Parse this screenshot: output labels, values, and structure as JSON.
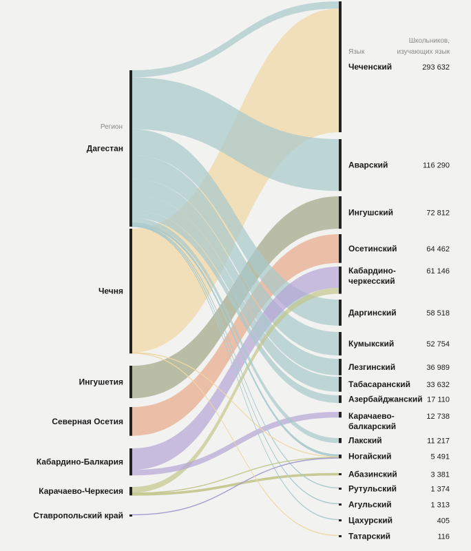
{
  "chart_data": {
    "type": "sankey",
    "headers": {
      "region": "Регион",
      "language": "Язык",
      "students_line1": "Школьников,",
      "students_line2": "изучающих язык"
    },
    "regions": [
      {
        "id": "dag",
        "label": "Дагестан",
        "color": "#a9c9cc"
      },
      {
        "id": "che",
        "label": "Чечня",
        "color": "#eed7a3"
      },
      {
        "id": "ing",
        "label": "Ингушетия",
        "color": "#a3a889"
      },
      {
        "id": "oss",
        "label": "Северная Осетия",
        "color": "#e6a98a"
      },
      {
        "id": "kbr",
        "label": "Кабардино-Балкария",
        "color": "#b5a6d6"
      },
      {
        "id": "kch",
        "label": "Карачаево-Черкесия",
        "color": "#c3c68c"
      },
      {
        "id": "sta",
        "label": "Ставропольский край",
        "color": "#a09ad0"
      }
    ],
    "languages": [
      {
        "id": "chechen",
        "label": [
          "Чеченский"
        ],
        "value": "293 632"
      },
      {
        "id": "avar",
        "label": [
          "Аварский"
        ],
        "value": "116 290"
      },
      {
        "id": "ingush",
        "label": [
          "Ингушский"
        ],
        "value": "72 812"
      },
      {
        "id": "ossetian",
        "label": [
          "Осетинский"
        ],
        "value": "64 462"
      },
      {
        "id": "kabcher",
        "label": [
          "Кабардино-",
          "черкесский"
        ],
        "value": "61 146"
      },
      {
        "id": "dargin",
        "label": [
          "Даргинский"
        ],
        "value": "58 518"
      },
      {
        "id": "kumyk",
        "label": [
          "Кумыкский"
        ],
        "value": "52 754"
      },
      {
        "id": "lezgin",
        "label": [
          "Лезгинский"
        ],
        "value": "36 989"
      },
      {
        "id": "tabasaran",
        "label": [
          "Табасаранский"
        ],
        "value": "33 632"
      },
      {
        "id": "azeri",
        "label": [
          "Азербайджанский"
        ],
        "value": "17 110"
      },
      {
        "id": "karbal",
        "label": [
          "Карачаево-",
          "балкарский"
        ],
        "value": "12 738"
      },
      {
        "id": "lak",
        "label": [
          "Лакский"
        ],
        "value": "11 217"
      },
      {
        "id": "nogai",
        "label": [
          "Ногайский"
        ],
        "value": "5 491"
      },
      {
        "id": "abaza",
        "label": [
          "Абазинский"
        ],
        "value": "3 381"
      },
      {
        "id": "rutul",
        "label": [
          "Рутульский"
        ],
        "value": "1 374"
      },
      {
        "id": "agul",
        "label": [
          "Агульский"
        ],
        "value": "1 313"
      },
      {
        "id": "tsakhur",
        "label": [
          "Цахурский"
        ],
        "value": "405"
      },
      {
        "id": "tatar",
        "label": [
          "Татарский"
        ],
        "value": "116"
      }
    ],
    "flows": [
      {
        "from": "dag",
        "to": "chechen",
        "value": 16000
      },
      {
        "from": "dag",
        "to": "avar",
        "value": 116290
      },
      {
        "from": "dag",
        "to": "dargin",
        "value": 58518
      },
      {
        "from": "dag",
        "to": "kumyk",
        "value": 52754
      },
      {
        "from": "dag",
        "to": "lezgin",
        "value": 36989
      },
      {
        "from": "dag",
        "to": "tabasaran",
        "value": 33632
      },
      {
        "from": "dag",
        "to": "azeri",
        "value": 17110
      },
      {
        "from": "dag",
        "to": "lak",
        "value": 11217
      },
      {
        "from": "dag",
        "to": "nogai",
        "value": 4000
      },
      {
        "from": "dag",
        "to": "rutul",
        "value": 1374
      },
      {
        "from": "dag",
        "to": "agul",
        "value": 1313
      },
      {
        "from": "dag",
        "to": "tsakhur",
        "value": 405
      },
      {
        "from": "che",
        "to": "chechen",
        "value": 277632
      },
      {
        "from": "che",
        "to": "nogai",
        "value": 800
      },
      {
        "from": "che",
        "to": "tatar",
        "value": 116
      },
      {
        "from": "ing",
        "to": "ingush",
        "value": 72812
      },
      {
        "from": "oss",
        "to": "ossetian",
        "value": 64462
      },
      {
        "from": "kbr",
        "to": "kabcher",
        "value": 48000
      },
      {
        "from": "kbr",
        "to": "karbal",
        "value": 12738
      },
      {
        "from": "kch",
        "to": "kabcher",
        "value": 13146
      },
      {
        "from": "kch",
        "to": "nogai",
        "value": 500
      },
      {
        "from": "kch",
        "to": "abaza",
        "value": 3381
      },
      {
        "from": "sta",
        "to": "nogai",
        "value": 191
      }
    ]
  }
}
